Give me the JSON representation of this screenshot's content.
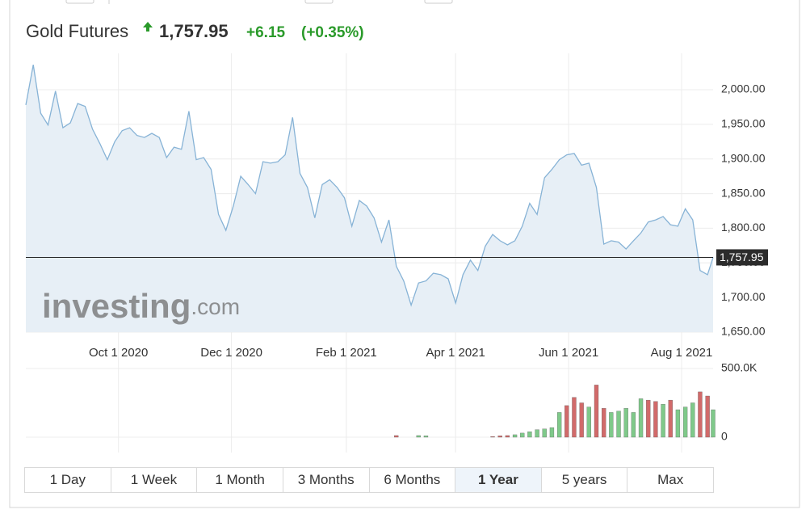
{
  "header": {
    "title": "Gold Futures",
    "change": "+6.15",
    "change_pct": "(+0.35%)",
    "watermark": "investing",
    "watermark_suffix": ".com"
  },
  "buttons": {
    "labels": [
      "1 Day",
      "1 Week",
      "1 Month",
      "3 Months",
      "6 Months",
      "1 Year",
      "5 years",
      "Max"
    ],
    "selected": 5
  },
  "chart_data": {
    "type": "line",
    "x": [
      "2020-08-12",
      "2020-08-16",
      "2020-08-20",
      "2020-08-24",
      "2020-08-28",
      "2020-09-01",
      "2020-09-05",
      "2020-09-09",
      "2020-09-13",
      "2020-09-17",
      "2020-09-21",
      "2020-09-25",
      "2020-09-29",
      "2020-10-03",
      "2020-10-07",
      "2020-10-11",
      "2020-10-15",
      "2020-10-19",
      "2020-10-23",
      "2020-10-27",
      "2020-10-31",
      "2020-11-04",
      "2020-11-08",
      "2020-11-12",
      "2020-11-16",
      "2020-11-20",
      "2020-11-24",
      "2020-11-28",
      "2020-12-02",
      "2020-12-06",
      "2020-12-10",
      "2020-12-14",
      "2020-12-18",
      "2020-12-22",
      "2020-12-26",
      "2020-12-30",
      "2021-01-03",
      "2021-01-07",
      "2021-01-11",
      "2021-01-15",
      "2021-01-19",
      "2021-01-23",
      "2021-01-27",
      "2021-01-31",
      "2021-02-04",
      "2021-02-08",
      "2021-02-12",
      "2021-02-16",
      "2021-02-20",
      "2021-02-24",
      "2021-02-28",
      "2021-03-04",
      "2021-03-08",
      "2021-03-12",
      "2021-03-16",
      "2021-03-20",
      "2021-03-24",
      "2021-03-28",
      "2021-04-01",
      "2021-04-05",
      "2021-04-09",
      "2021-04-13",
      "2021-04-17",
      "2021-04-21",
      "2021-04-25",
      "2021-04-29",
      "2021-05-03",
      "2021-05-07",
      "2021-05-11",
      "2021-05-15",
      "2021-05-19",
      "2021-05-23",
      "2021-05-27",
      "2021-05-31",
      "2021-06-04",
      "2021-06-08",
      "2021-06-12",
      "2021-06-16",
      "2021-06-20",
      "2021-06-24",
      "2021-06-28",
      "2021-07-02",
      "2021-07-06",
      "2021-07-10",
      "2021-07-14",
      "2021-07-18",
      "2021-07-22",
      "2021-07-26",
      "2021-07-30",
      "2021-08-03",
      "2021-08-07",
      "2021-08-11",
      "2021-08-15",
      "2021-08-18"
    ],
    "series": [
      {
        "color": "#87b3d6",
        "fill": "#e7eff6",
        "values": [
          1978,
          2036,
          1966,
          1949,
          1998,
          1945,
          1952,
          1980,
          1976,
          1943,
          1922,
          1899,
          1925,
          1941,
          1945,
          1934,
          1931,
          1937,
          1931,
          1902,
          1917,
          1914,
          1969,
          1899,
          1902,
          1885,
          1820,
          1797,
          1832,
          1875,
          1863,
          1850,
          1896,
          1894,
          1896,
          1906,
          1960,
          1879,
          1859,
          1815,
          1863,
          1870,
          1859,
          1844,
          1803,
          1840,
          1832,
          1815,
          1780,
          1812,
          1745,
          1724,
          1689,
          1721,
          1724,
          1735,
          1733,
          1727,
          1692,
          1733,
          1754,
          1739,
          1774,
          1791,
          1782,
          1776,
          1782,
          1803,
          1836,
          1820,
          1873,
          1885,
          1899,
          1906,
          1908,
          1891,
          1894,
          1859,
          1777,
          1782,
          1780,
          1770,
          1782,
          1793,
          1809,
          1812,
          1817,
          1805,
          1803,
          1828,
          1812,
          1739,
          1733,
          1758
        ]
      },
      {
        "type": "bar",
        "axis": "y2",
        "values": [
          null,
          null,
          null,
          null,
          null,
          null,
          null,
          null,
          null,
          null,
          null,
          null,
          null,
          null,
          null,
          null,
          null,
          null,
          null,
          null,
          null,
          null,
          null,
          null,
          null,
          null,
          null,
          null,
          null,
          null,
          null,
          null,
          null,
          null,
          null,
          null,
          null,
          null,
          null,
          null,
          null,
          null,
          null,
          null,
          null,
          null,
          null,
          null,
          null,
          null,
          12000,
          null,
          null,
          12000,
          10000,
          null,
          null,
          null,
          null,
          null,
          null,
          null,
          null,
          5000,
          10000,
          12000,
          18000,
          30000,
          40000,
          55000,
          60000,
          70000,
          180000,
          230000,
          290000,
          250000,
          220000,
          380000,
          210000,
          180000,
          190000,
          210000,
          180000,
          280000,
          270000,
          260000,
          240000,
          270000,
          200000,
          220000,
          250000,
          330000,
          300000,
          200000
        ],
        "colors": [
          null,
          null,
          null,
          null,
          null,
          null,
          null,
          null,
          null,
          null,
          null,
          null,
          null,
          null,
          null,
          null,
          null,
          null,
          null,
          null,
          null,
          null,
          null,
          null,
          null,
          null,
          null,
          null,
          null,
          null,
          null,
          null,
          null,
          null,
          null,
          null,
          null,
          null,
          null,
          null,
          null,
          null,
          null,
          null,
          null,
          null,
          null,
          null,
          null,
          null,
          "#d16a6a",
          null,
          null,
          "#7fc98a",
          "#7fc98a",
          null,
          null,
          null,
          null,
          null,
          null,
          null,
          null,
          "#d16a6a",
          "#d16a6a",
          "#d16a6a",
          "#7fc98a",
          "#7fc98a",
          "#7fc98a",
          "#7fc98a",
          "#7fc98a",
          "#7fc98a",
          "#7fc98a",
          "#d16a6a",
          "#d16a6a",
          "#d16a6a",
          "#7fc98a",
          "#d16a6a",
          "#d16a6a",
          "#7fc98a",
          "#7fc98a",
          "#7fc98a",
          "#7fc98a",
          "#7fc98a",
          "#d16a6a",
          "#d16a6a",
          "#7fc98a",
          "#d16a6a",
          "#7fc98a",
          "#7fc98a",
          "#7fc98a",
          "#d16a6a",
          "#d16a6a",
          "#7fc98a"
        ]
      }
    ],
    "xlim": [
      "2020-08-12",
      "2021-08-18"
    ],
    "xticks": [
      {
        "value": "2020-10-01",
        "label": "Oct 1 2020"
      },
      {
        "value": "2020-12-01",
        "label": "Dec 1 2020"
      },
      {
        "value": "2021-02-01",
        "label": "Feb 1 2021"
      },
      {
        "value": "2021-04-01",
        "label": "Apr 1 2021"
      },
      {
        "value": "2021-06-01",
        "label": "Jun 1 2021"
      },
      {
        "value": "2021-08-01",
        "label": "Aug 1 2021"
      }
    ],
    "ylim": [
      1650,
      2052.5
    ],
    "yticks": [
      {
        "value": 1650,
        "label": "1,650.00"
      },
      {
        "value": 1700,
        "label": "1,700.00"
      },
      {
        "value": 1750,
        "label": "1,750.00"
      },
      {
        "value": 1800,
        "label": "1,800.00"
      },
      {
        "value": 1850,
        "label": "1,850.00"
      },
      {
        "value": 1900,
        "label": "1,900.00"
      },
      {
        "value": 1950,
        "label": "1,950.00"
      },
      {
        "value": 2000,
        "label": "2,000.00"
      }
    ],
    "y2lim": [
      0,
      500000
    ],
    "y2ticks": [
      0,
      {
        "value": 500000,
        "label": "500.0K"
      }
    ],
    "last_price": {
      "value": 1757.95,
      "label": "1,757.95"
    },
    "grid": true
  }
}
